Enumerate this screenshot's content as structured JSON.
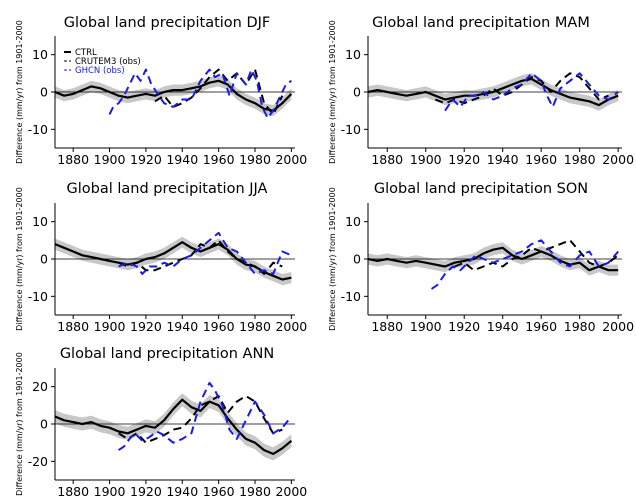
{
  "figure": {
    "ylabel": "Difference (mm/yr) from 1901-2000",
    "legend": [
      {
        "name": "CTRL",
        "color": "#000000",
        "dash": "solid"
      },
      {
        "name": "CRUTEM3 (obs)",
        "color": "#000000",
        "dash": "dashed"
      },
      {
        "name": "GHCN (obs)",
        "color": "#1a1aee",
        "dash": "dashed"
      }
    ],
    "colors": {
      "model": "#000000",
      "envelope": "#c8c8c8",
      "crutem3": "#000000",
      "ghcn": "#1a1aee",
      "zero_line": "#000000"
    }
  },
  "chart_data": [
    {
      "type": "line",
      "title": "Global land precipitation DJF",
      "ylabel": "Difference (mm/yr) from 1901-2000",
      "xlim": [
        1870,
        2002
      ],
      "ylim": [
        -15,
        15
      ],
      "xticks": [
        1880,
        1900,
        1920,
        1940,
        1960,
        1980,
        2000
      ],
      "yticks": [
        -10,
        0,
        10
      ],
      "legend_position": "top-left",
      "grid": false,
      "series": [
        {
          "name": "CTRL",
          "x": [
            1870,
            1875,
            1880,
            1885,
            1890,
            1895,
            1900,
            1905,
            1910,
            1915,
            1920,
            1925,
            1930,
            1935,
            1940,
            1945,
            1950,
            1955,
            1960,
            1965,
            1970,
            1975,
            1980,
            1985,
            1990,
            1995,
            2000
          ],
          "y": [
            0,
            -1,
            -0.5,
            0.5,
            1.5,
            1,
            0,
            -1,
            -1.5,
            -1,
            -0.5,
            -1,
            0,
            0.5,
            0.5,
            1,
            1.5,
            2.5,
            3,
            2,
            -0.5,
            -2,
            -3,
            -4.5,
            -5,
            -3,
            -0.5
          ],
          "envelope": 1.5
        },
        {
          "name": "CRUTEM3 (obs)",
          "x": [
            1925,
            1930,
            1935,
            1940,
            1945,
            1950,
            1955,
            1960,
            1965,
            1970,
            1975,
            1980,
            1985,
            1990,
            1995
          ],
          "y": [
            -2.5,
            -1,
            -4,
            -3,
            -1.5,
            1,
            4,
            6,
            3,
            5,
            2,
            6,
            -3,
            -6,
            -1
          ]
        },
        {
          "name": "GHCN (obs)",
          "x": [
            1900,
            1902,
            1905,
            1908,
            1911,
            1914,
            1917,
            1920,
            1923,
            1930,
            1935,
            1940,
            1945,
            1950,
            1955,
            1958,
            1962,
            1966,
            1970,
            1975,
            1978,
            1981,
            1984,
            1987,
            1990,
            1994,
            1997,
            2000
          ],
          "y": [
            -6,
            -4,
            -3,
            -1,
            2,
            5,
            3,
            6,
            2,
            -3,
            -4,
            -2,
            -2,
            3,
            6,
            4,
            5,
            -1,
            5,
            2,
            6,
            3,
            -4,
            -7,
            -5,
            -1,
            2,
            3
          ]
        }
      ]
    },
    {
      "type": "line",
      "title": "Global land precipitation MAM",
      "ylabel": "Difference (mm/yr) from 1901-2000",
      "xlim": [
        1870,
        2002
      ],
      "ylim": [
        -15,
        15
      ],
      "xticks": [
        1880,
        1900,
        1920,
        1940,
        1960,
        1980,
        2000
      ],
      "yticks": [
        -10,
        0,
        10
      ],
      "grid": false,
      "series": [
        {
          "name": "CTRL",
          "x": [
            1870,
            1875,
            1880,
            1885,
            1890,
            1895,
            1900,
            1905,
            1910,
            1915,
            1920,
            1925,
            1930,
            1935,
            1940,
            1945,
            1950,
            1955,
            1960,
            1965,
            1970,
            1975,
            1980,
            1985,
            1990,
            1995,
            2000
          ],
          "y": [
            0,
            0.5,
            0,
            -0.5,
            -1,
            -0.5,
            0,
            -1,
            -2,
            -1.5,
            -1,
            -1,
            -0.5,
            0,
            1,
            2,
            3,
            3.5,
            2,
            0.5,
            -0.5,
            -1.5,
            -2,
            -2.5,
            -3.5,
            -2,
            -1
          ],
          "envelope": 1.5
        },
        {
          "name": "CRUTEM3 (obs)",
          "x": [
            1905,
            1910,
            1915,
            1920,
            1925,
            1930,
            1935,
            1940,
            1945,
            1950,
            1955,
            1960,
            1965,
            1970,
            1975,
            1980,
            1985,
            1990,
            1995
          ],
          "y": [
            -2,
            -3,
            -2,
            -3,
            -2,
            -1,
            1,
            -1,
            0,
            2,
            4,
            3,
            0,
            3,
            5,
            4,
            1,
            -2,
            -1
          ]
        },
        {
          "name": "GHCN (obs)",
          "x": [
            1910,
            1914,
            1918,
            1922,
            1926,
            1930,
            1935,
            1940,
            1945,
            1950,
            1955,
            1960,
            1963,
            1966,
            1970,
            1975,
            1980,
            1985,
            1990,
            1995,
            2000
          ],
          "y": [
            -5,
            -2,
            -4,
            -1,
            -1,
            0,
            -2,
            -1,
            1,
            2,
            5,
            3,
            -1,
            -4,
            1,
            3,
            5,
            2,
            -1,
            -2,
            0
          ]
        }
      ]
    },
    {
      "type": "line",
      "title": "Global land precipitation JJA",
      "ylabel": "Difference (mm/yr) from 1901-2000",
      "xlim": [
        1870,
        2002
      ],
      "ylim": [
        -15,
        15
      ],
      "xticks": [
        1880,
        1900,
        1920,
        1940,
        1960,
        1980,
        2000
      ],
      "yticks": [
        -10,
        0,
        10
      ],
      "grid": false,
      "series": [
        {
          "name": "CTRL",
          "x": [
            1870,
            1875,
            1880,
            1885,
            1890,
            1895,
            1900,
            1905,
            1910,
            1915,
            1920,
            1925,
            1930,
            1935,
            1940,
            1945,
            1950,
            1955,
            1960,
            1965,
            1970,
            1975,
            1980,
            1985,
            1990,
            1995,
            2000
          ],
          "y": [
            4,
            3,
            2,
            1,
            0.5,
            0,
            -0.5,
            -1,
            -1.5,
            -1,
            0,
            0.5,
            1.5,
            3,
            4.5,
            3,
            2,
            3,
            4,
            2.5,
            0,
            -1.5,
            -2,
            -3.5,
            -4.5,
            -5.5,
            -5
          ],
          "envelope": 1.5
        },
        {
          "name": "CRUTEM3 (obs)",
          "x": [
            1905,
            1910,
            1915,
            1920,
            1925,
            1930,
            1935,
            1940,
            1945,
            1950,
            1955,
            1960,
            1965,
            1970,
            1975,
            1980,
            1985,
            1990,
            1995
          ],
          "y": [
            -1,
            -2,
            -1,
            -3,
            -3,
            -2,
            -1,
            0,
            1,
            4,
            3,
            5,
            2,
            0,
            -1,
            -2,
            -4,
            -1,
            -2
          ]
        },
        {
          "name": "GHCN (obs)",
          "x": [
            1905,
            1910,
            1915,
            1918,
            1922,
            1926,
            1930,
            1935,
            1940,
            1945,
            1950,
            1955,
            1960,
            1965,
            1970,
            1975,
            1980,
            1985,
            1990,
            1995,
            2000
          ],
          "y": [
            -2,
            -1,
            -2,
            -4,
            -2,
            -2,
            -1,
            -2,
            0,
            1,
            3,
            5,
            7,
            3,
            2,
            -1,
            -4,
            -3,
            -4,
            2,
            1
          ]
        }
      ]
    },
    {
      "type": "line",
      "title": "Global land precipitation SON",
      "ylabel": "Difference (mm/yr) from 1901-2000",
      "xlim": [
        1870,
        2002
      ],
      "ylim": [
        -15,
        15
      ],
      "xticks": [
        1880,
        1900,
        1920,
        1940,
        1960,
        1980,
        2000
      ],
      "yticks": [
        -10,
        0,
        10
      ],
      "grid": false,
      "series": [
        {
          "name": "CTRL",
          "x": [
            1870,
            1875,
            1880,
            1885,
            1890,
            1895,
            1900,
            1905,
            1910,
            1915,
            1920,
            1925,
            1930,
            1935,
            1940,
            1945,
            1950,
            1955,
            1960,
            1965,
            1970,
            1975,
            1980,
            1985,
            1990,
            1995,
            2000
          ],
          "y": [
            0,
            -0.5,
            0,
            -0.5,
            -1,
            -0.5,
            -1,
            -1.5,
            -2,
            -1,
            -0.5,
            0,
            1.5,
            2.5,
            3,
            1,
            0,
            1,
            2,
            1,
            -0.5,
            -1.5,
            -1,
            -3,
            -2,
            -3,
            -3
          ],
          "envelope": 1.5
        },
        {
          "name": "CRUTEM3 (obs)",
          "x": [
            1915,
            1920,
            1925,
            1930,
            1935,
            1940,
            1945,
            1950,
            1955,
            1960,
            1965,
            1970,
            1975,
            1980,
            1985,
            1990,
            1995,
            2000
          ],
          "y": [
            -2,
            -1,
            -3,
            -2,
            -1,
            -2,
            0,
            1,
            3,
            2,
            3,
            4,
            5,
            2,
            -1,
            -2,
            -1,
            1
          ]
        },
        {
          "name": "GHCN (obs)",
          "x": [
            1903,
            1906,
            1910,
            1914,
            1918,
            1922,
            1926,
            1930,
            1935,
            1940,
            1945,
            1950,
            1955,
            1960,
            1965,
            1970,
            1975,
            1980,
            1985,
            1990,
            1995,
            2000
          ],
          "y": [
            -8,
            -7,
            -4,
            -2,
            -3,
            -1,
            1,
            0,
            -1,
            0,
            1,
            2,
            4,
            5,
            2,
            -1,
            -2,
            1,
            2,
            -2,
            -1,
            2
          ]
        }
      ]
    },
    {
      "type": "line",
      "title": "Global land precipitation ANN",
      "ylabel": "Difference (mm/yr) from 1901-2000",
      "xlim": [
        1870,
        2002
      ],
      "ylim": [
        -30,
        30
      ],
      "xticks": [
        1880,
        1900,
        1920,
        1940,
        1960,
        1980,
        2000
      ],
      "yticks": [
        -20,
        0,
        20
      ],
      "grid": false,
      "series": [
        {
          "name": "CTRL",
          "x": [
            1870,
            1875,
            1880,
            1885,
            1890,
            1895,
            1900,
            1905,
            1910,
            1915,
            1920,
            1925,
            1930,
            1935,
            1940,
            1945,
            1950,
            1955,
            1960,
            1965,
            1970,
            1975,
            1980,
            1985,
            1990,
            1995,
            2000
          ],
          "y": [
            4,
            2,
            1,
            0,
            1,
            -1,
            -2,
            -4,
            -5,
            -3,
            -1,
            -2,
            2,
            8,
            13,
            9,
            7,
            12,
            10,
            3,
            -3,
            -8,
            -10,
            -14,
            -16,
            -13,
            -9
          ],
          "envelope": 3.5
        },
        {
          "name": "CRUTEM3 (obs)",
          "x": [
            1905,
            1910,
            1915,
            1920,
            1925,
            1930,
            1935,
            1940,
            1945,
            1950,
            1955,
            1960,
            1965,
            1970,
            1975,
            1980,
            1985,
            1990,
            1995
          ],
          "y": [
            -5,
            -8,
            -5,
            -10,
            -8,
            -6,
            -3,
            -2,
            3,
            10,
            12,
            15,
            6,
            12,
            15,
            12,
            3,
            -5,
            -3
          ]
        },
        {
          "name": "GHCN (obs)",
          "x": [
            1905,
            1908,
            1911,
            1914,
            1918,
            1922,
            1926,
            1930,
            1935,
            1940,
            1945,
            1950,
            1955,
            1958,
            1962,
            1966,
            1970,
            1975,
            1980,
            1985,
            1990,
            1995,
            2000
          ],
          "y": [
            -14,
            -12,
            -8,
            -5,
            -9,
            -7,
            -4,
            -6,
            -10,
            -8,
            -5,
            12,
            22,
            18,
            10,
            -3,
            -8,
            2,
            12,
            5,
            -5,
            -2,
            4
          ]
        }
      ]
    }
  ]
}
